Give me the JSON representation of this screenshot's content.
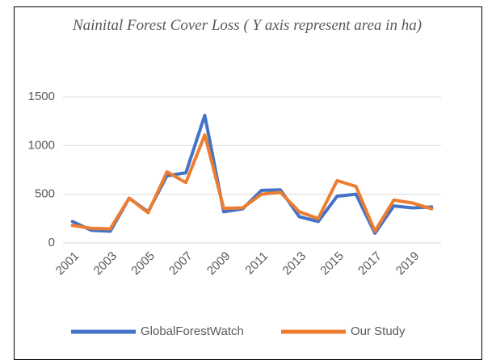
{
  "chart_data": {
    "type": "line",
    "title": "Nainital Forest Cover Loss ( Y axis represent area in ha)",
    "categories": [
      "2001",
      null,
      "2003",
      null,
      "2005",
      null,
      "2007",
      null,
      "2009",
      null,
      "2011",
      null,
      "2013",
      null,
      "2015",
      null,
      "2017",
      null,
      "2019",
      null
    ],
    "series": [
      {
        "name": "GlobalForestWatch",
        "color": "#4472c4",
        "values": [
          220,
          130,
          120,
          460,
          320,
          690,
          720,
          1310,
          320,
          350,
          540,
          545,
          270,
          220,
          480,
          500,
          100,
          380,
          360,
          370
        ]
      },
      {
        "name": "Our Study",
        "color": "#ed7d31",
        "values": [
          180,
          150,
          145,
          460,
          310,
          730,
          620,
          1110,
          355,
          360,
          500,
          520,
          320,
          250,
          640,
          580,
          120,
          440,
          410,
          350
        ]
      }
    ],
    "ylim": [
      0,
      1500
    ],
    "yticks": [
      0,
      500,
      1000,
      1500
    ],
    "grid": true,
    "legend": "bottom"
  }
}
